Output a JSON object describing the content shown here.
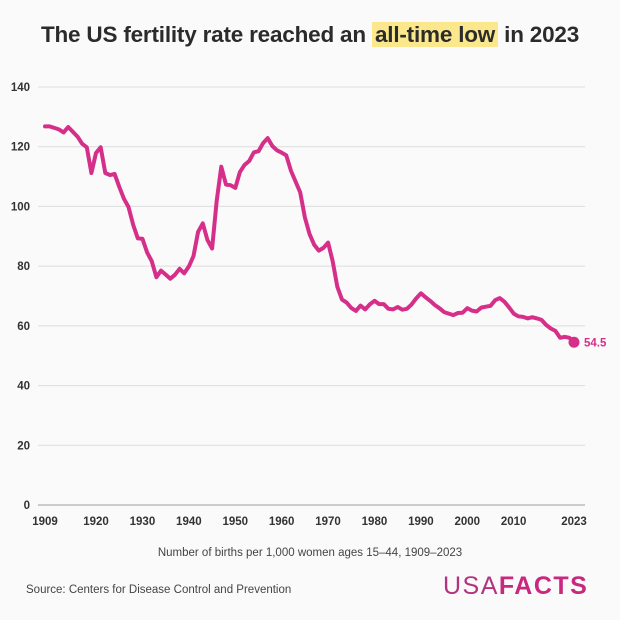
{
  "title": {
    "before": "The US fertility rate reached an ",
    "highlight": "all-time low",
    "after": " in 2023"
  },
  "caption": "Number of births per 1,000 women ages 15–44, 1909–2023",
  "source": "Source: Centers for Disease Control and Prevention",
  "logo": {
    "light": "USA",
    "bold": "FACTS"
  },
  "colors": {
    "line": "#d62f8a",
    "highlight": "#fbe88c",
    "grid": "#dddddd"
  },
  "chart_data": {
    "type": "line",
    "title": "The US fertility rate reached an all-time low in 2023",
    "xlabel": "Number of births per 1,000 women ages 15–44, 1909–2023",
    "ylabel": "",
    "xlim": [
      1909,
      2023
    ],
    "ylim": [
      0,
      140
    ],
    "grid": true,
    "yticks": [
      0,
      20,
      40,
      60,
      80,
      100,
      120,
      140
    ],
    "xticks": [
      1909,
      1920,
      1930,
      1940,
      1950,
      1960,
      1970,
      1980,
      1990,
      2000,
      2010,
      2023
    ],
    "end_label": "54.5",
    "x": [
      1909,
      1910,
      1911,
      1912,
      1913,
      1914,
      1915,
      1916,
      1917,
      1918,
      1919,
      1920,
      1921,
      1922,
      1923,
      1924,
      1925,
      1926,
      1927,
      1928,
      1929,
      1930,
      1931,
      1932,
      1933,
      1934,
      1935,
      1936,
      1937,
      1938,
      1939,
      1940,
      1941,
      1942,
      1943,
      1944,
      1945,
      1946,
      1947,
      1948,
      1949,
      1950,
      1951,
      1952,
      1953,
      1954,
      1955,
      1956,
      1957,
      1958,
      1959,
      1960,
      1961,
      1962,
      1963,
      1964,
      1965,
      1966,
      1967,
      1968,
      1969,
      1970,
      1971,
      1972,
      1973,
      1974,
      1975,
      1976,
      1977,
      1978,
      1979,
      1980,
      1981,
      1982,
      1983,
      1984,
      1985,
      1986,
      1987,
      1988,
      1989,
      1990,
      1991,
      1992,
      1993,
      1994,
      1995,
      1996,
      1997,
      1998,
      1999,
      2000,
      2001,
      2002,
      2003,
      2004,
      2005,
      2006,
      2007,
      2008,
      2009,
      2010,
      2011,
      2012,
      2013,
      2014,
      2015,
      2016,
      2017,
      2018,
      2019,
      2020,
      2021,
      2022,
      2023
    ],
    "y": [
      126.8,
      126.8,
      126.3,
      125.8,
      124.8,
      126.6,
      125.0,
      123.4,
      121.0,
      119.8,
      111.2,
      117.9,
      119.8,
      111.2,
      110.5,
      110.9,
      106.6,
      102.6,
      99.8,
      93.8,
      89.3,
      89.2,
      84.6,
      81.7,
      76.3,
      78.5,
      77.2,
      75.8,
      77.1,
      79.1,
      77.6,
      79.9,
      83.4,
      91.5,
      94.3,
      88.8,
      85.9,
      101.9,
      113.3,
      107.3,
      107.1,
      106.2,
      111.5,
      113.9,
      115.2,
      118.1,
      118.5,
      121.2,
      122.9,
      120.2,
      118.8,
      118.0,
      117.1,
      112.0,
      108.3,
      104.7,
      96.3,
      90.8,
      87.2,
      85.2,
      86.1,
      87.9,
      81.6,
      73.1,
      68.8,
      67.8,
      66.0,
      65.0,
      66.8,
      65.5,
      67.2,
      68.4,
      67.3,
      67.3,
      65.7,
      65.5,
      66.3,
      65.4,
      65.7,
      67.2,
      69.2,
      70.9,
      69.6,
      68.4,
      67.0,
      65.9,
      64.6,
      64.1,
      63.6,
      64.3,
      64.4,
      65.9,
      65.1,
      64.8,
      66.1,
      66.4,
      66.7,
      68.6,
      69.3,
      68.1,
      66.2,
      64.1,
      63.2,
      63.0,
      62.5,
      62.9,
      62.5,
      62.0,
      60.3,
      59.1,
      58.3,
      56.0,
      56.3,
      56.0,
      54.5
    ]
  }
}
